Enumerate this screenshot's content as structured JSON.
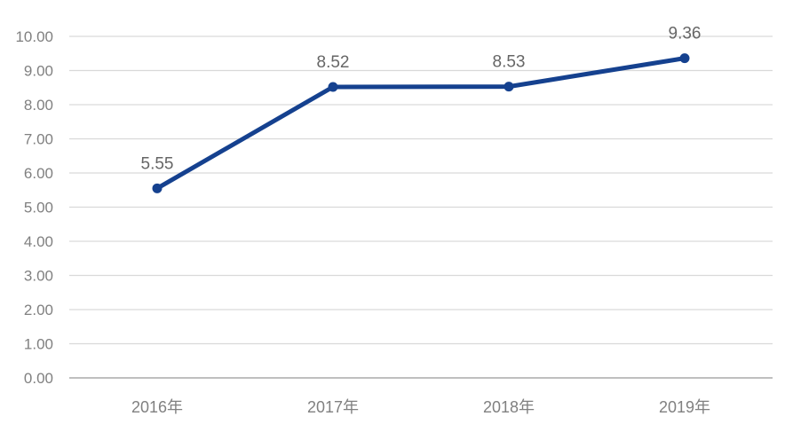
{
  "chart_data": {
    "type": "line",
    "title": "",
    "xlabel": "",
    "ylabel": "",
    "categories": [
      "2016年",
      "2017年",
      "2018年",
      "2019年"
    ],
    "series": [
      {
        "name": "series-1",
        "values": [
          5.55,
          8.52,
          8.53,
          9.36
        ]
      }
    ],
    "data_labels": [
      "5.55",
      "8.52",
      "8.53",
      "9.36"
    ],
    "ylim": [
      0,
      10
    ],
    "y_tick_step": 1,
    "y_tick_labels": [
      "0.00",
      "1.00",
      "2.00",
      "3.00",
      "4.00",
      "5.00",
      "6.00",
      "7.00",
      "8.00",
      "9.00",
      "10.00"
    ],
    "grid": true,
    "legend_position": "none",
    "colors": {
      "line": "#15418f",
      "marker": "#15418f",
      "gridline": "#d9d9d9",
      "baseline": "#bfbfbf",
      "axis_label": "#808080",
      "data_label": "#666666",
      "background": "#ffffff"
    }
  }
}
